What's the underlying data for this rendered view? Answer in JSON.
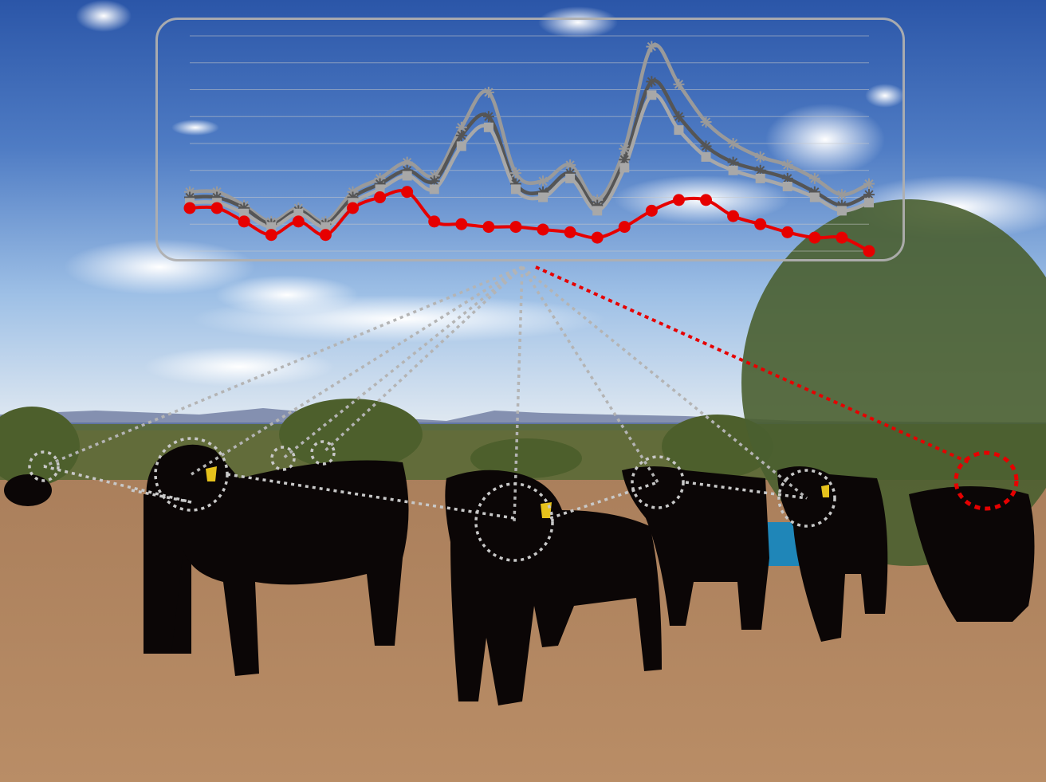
{
  "chart_data": {
    "type": "line",
    "title": "",
    "xlabel": "",
    "ylabel": "",
    "x": [
      1,
      2,
      3,
      4,
      5,
      6,
      7,
      8,
      9,
      10,
      11,
      12,
      13,
      14,
      15,
      16,
      17,
      18,
      19,
      20,
      21,
      22,
      23,
      24,
      25,
      26
    ],
    "ylim": [
      0,
      8
    ],
    "grid": true,
    "legend": "none",
    "series": [
      {
        "marker": "cross",
        "color": "#9a9a9a",
        "values": [
          2.2,
          2.2,
          1.7,
          1.1,
          1.6,
          1.1,
          2.2,
          2.7,
          3.3,
          2.8,
          4.6,
          5.9,
          2.9,
          2.6,
          3.2,
          1.9,
          3.8,
          7.6,
          6.2,
          4.8,
          4.0,
          3.5,
          3.2,
          2.7,
          2.1,
          2.5
        ]
      },
      {
        "marker": "cross",
        "color": "#555555",
        "values": [
          2.0,
          2.0,
          1.6,
          1.0,
          1.5,
          1.0,
          2.0,
          2.5,
          3.0,
          2.6,
          4.3,
          5.0,
          2.5,
          2.2,
          2.9,
          1.7,
          3.4,
          6.3,
          5.0,
          3.9,
          3.3,
          3.0,
          2.7,
          2.2,
          1.7,
          2.1
        ]
      },
      {
        "marker": "square",
        "color": "#a8a8a8",
        "values": [
          1.8,
          1.8,
          1.4,
          0.9,
          1.4,
          0.9,
          1.8,
          2.3,
          2.8,
          2.3,
          3.9,
          4.6,
          2.3,
          2.0,
          2.7,
          1.5,
          3.1,
          5.8,
          4.5,
          3.5,
          3.0,
          2.7,
          2.4,
          2.0,
          1.5,
          1.8
        ]
      },
      {
        "marker": "circle",
        "color": "#e60000",
        "values": [
          1.6,
          1.6,
          1.1,
          0.6,
          1.1,
          0.6,
          1.6,
          2.0,
          2.2,
          1.1,
          1.0,
          0.9,
          0.9,
          0.8,
          0.7,
          0.5,
          0.9,
          1.5,
          1.9,
          1.9,
          1.3,
          1.0,
          0.7,
          0.5,
          0.5,
          0.0
        ]
      }
    ]
  },
  "scene": {
    "description_colors": {
      "sky_top": "#2b56a8",
      "sky_bottom": "#9ec0e6",
      "ground": "#b08560",
      "cattle": "#0b0606",
      "leader_gray": "#b4b4b4",
      "leader_red": "#e60000"
    }
  }
}
